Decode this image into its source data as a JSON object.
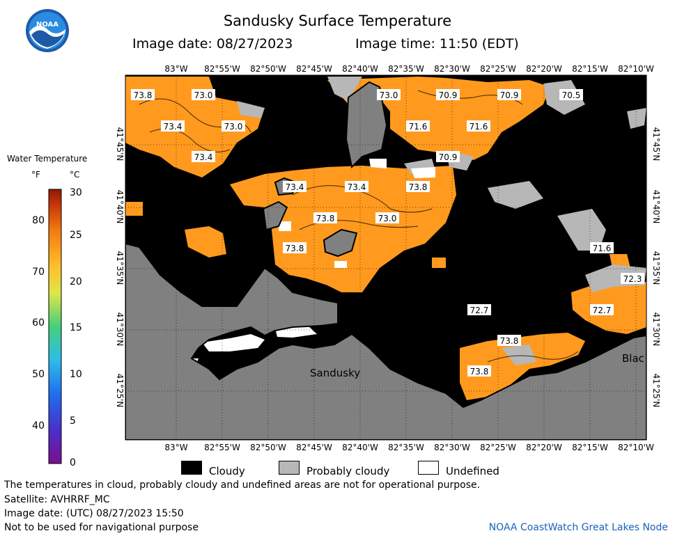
{
  "header": {
    "title": "Sandusky Surface Temperature",
    "image_date": "Image date: 08/27/2023",
    "image_time": "Image time: 11:50 (EDT)"
  },
  "logo": {
    "text": "NOAA",
    "icon": "noaa-logo-icon"
  },
  "map": {
    "lon_labels": [
      "83°W",
      "82°55'W",
      "82°50'W",
      "82°45'W",
      "82°40'W",
      "82°35'W",
      "82°30'W",
      "82°25'W",
      "82°20'W",
      "82°15'W",
      "82°10'W"
    ],
    "lat_labels": [
      "41°45'N",
      "41°40'N",
      "41°35'N",
      "41°30'N",
      "41°25'N"
    ],
    "place_labels": [
      "Sandusky",
      "Blac"
    ],
    "temperature_labels": [
      "73.8",
      "73.0",
      "73.0",
      "70.9",
      "70.9",
      "70.5",
      "73.4",
      "73.0",
      "71.6",
      "71.6",
      "73.4",
      "70.9",
      "73.4",
      "73.4",
      "73.8",
      "73.8",
      "73.0",
      "73.8",
      "71.6",
      "72.3",
      "72.7",
      "72.7",
      "73.8",
      "73.8"
    ],
    "colors": {
      "water_warm": "#ff9a1e",
      "cloudy": "#000000",
      "probably_cloudy": "#b7b7b7",
      "land": "#808080",
      "undefined": "#ffffff"
    }
  },
  "legend": {
    "title": "Water Temperature",
    "unit_f": "°F",
    "unit_c": "°C",
    "f_ticks": [
      "80",
      "70",
      "60",
      "50",
      "40"
    ],
    "c_ticks": [
      "30",
      "25",
      "20",
      "15",
      "10",
      "5",
      "0"
    ]
  },
  "key": [
    {
      "label": "Cloudy",
      "color": "#000000"
    },
    {
      "label": "Probably cloudy",
      "color": "#b7b7b7"
    },
    {
      "label": "Undefined",
      "color": "#ffffff"
    }
  ],
  "footer": {
    "disclaimer": "The temperatures in cloud, probably cloudy and undefined areas are not for operational purpose.",
    "satellite": "Satellite: AVHRRF_MC",
    "utc_date": "Image date: (UTC) 08/27/2023  15:50",
    "navigation": "Not to be used for navigational purpose",
    "credit": "NOAA CoastWatch Great Lakes Node"
  }
}
